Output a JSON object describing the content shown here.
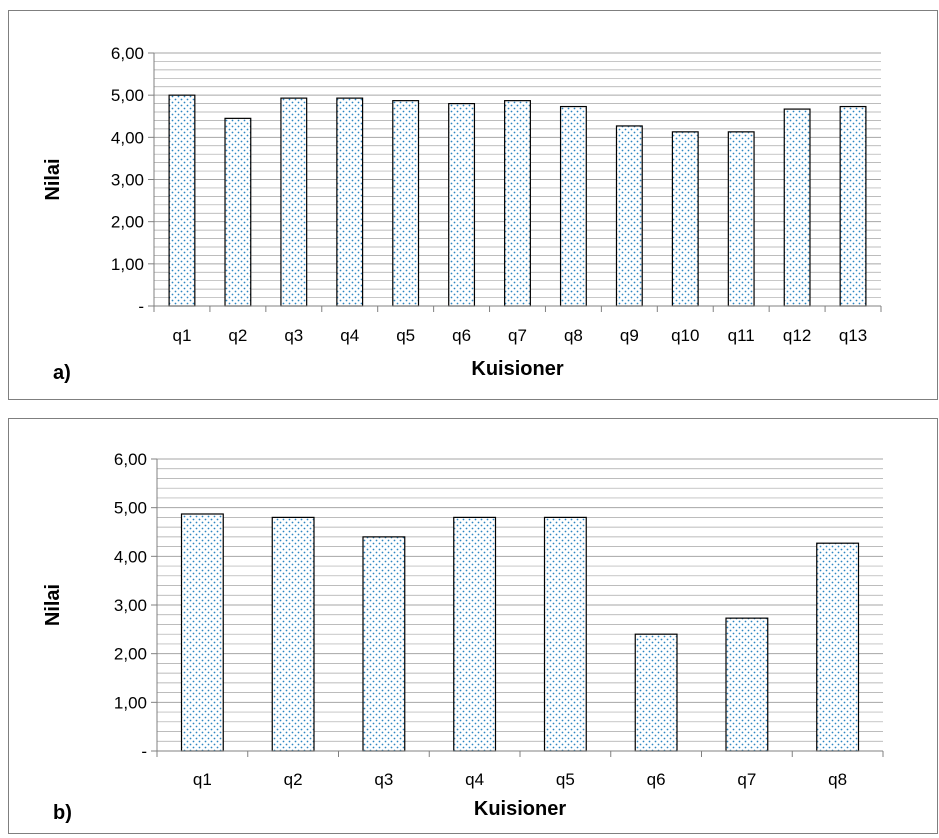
{
  "chart_data": [
    {
      "type": "bar",
      "panel_label": "a)",
      "xlabel": "Kuisioner",
      "ylabel": "Nilai",
      "ylim": [
        0,
        6
      ],
      "y_ticks": [
        "-",
        "1,00",
        "2,00",
        "3,00",
        "4,00",
        "5,00",
        "6,00"
      ],
      "categories": [
        "q1",
        "q2",
        "q3",
        "q4",
        "q5",
        "q6",
        "q7",
        "q8",
        "q9",
        "q10",
        "q11",
        "q12",
        "q13"
      ],
      "values": [
        5.0,
        4.45,
        4.93,
        4.93,
        4.87,
        4.8,
        4.87,
        4.73,
        4.27,
        4.13,
        4.13,
        4.67,
        4.73
      ],
      "grid": true,
      "colors": {
        "bar_fill": "#ffffff",
        "bar_stroke": "#000000",
        "bar_dots": "#2e86c1",
        "grid": "#a6a6a6",
        "axis": "#808080"
      }
    },
    {
      "type": "bar",
      "panel_label": "b)",
      "xlabel": "Kuisioner",
      "ylabel": "Nilai",
      "ylim": [
        0,
        6
      ],
      "y_ticks": [
        "-",
        "1,00",
        "2,00",
        "3,00",
        "4,00",
        "5,00",
        "6,00"
      ],
      "categories": [
        "q1",
        "q2",
        "q3",
        "q4",
        "q5",
        "q6",
        "q7",
        "q8"
      ],
      "values": [
        4.87,
        4.8,
        4.4,
        4.8,
        4.8,
        2.4,
        2.73,
        4.27
      ],
      "grid": true,
      "colors": {
        "bar_fill": "#ffffff",
        "bar_stroke": "#000000",
        "bar_dots": "#2e86c1",
        "grid": "#a6a6a6",
        "axis": "#808080"
      }
    }
  ]
}
